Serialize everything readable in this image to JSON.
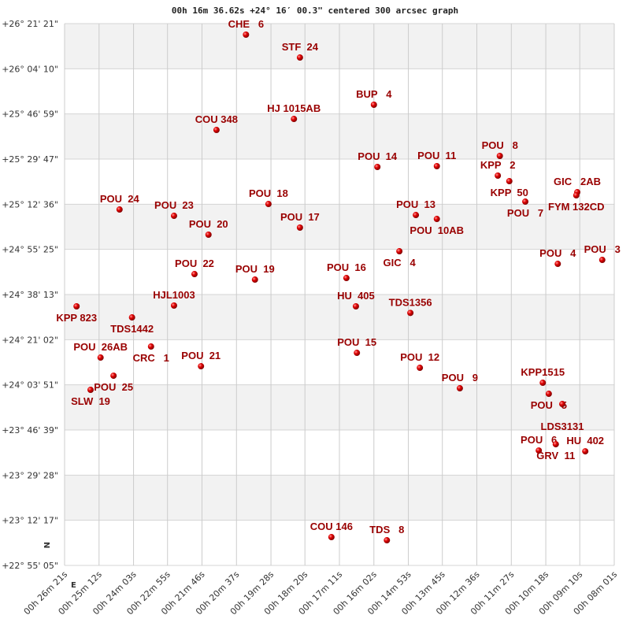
{
  "chart_data": {
    "type": "scatter",
    "title": "00h 16m 36.62s +24° 16′ 00.3\" centered 300 arcsec graph",
    "xlabel": "",
    "ylabel": "",
    "xlim": [
      "00h 26m 21s",
      "00h 08m 01s"
    ],
    "ylim": [
      "+22° 55' 05\"",
      "+26° 21' 21\""
    ],
    "x_axis_reversed": true,
    "grid": true,
    "band_colors": [
      "#f2f2f2",
      "#ffffff"
    ],
    "point_color": "#dd0000",
    "label_color": "#990000",
    "compass": {
      "north": "N",
      "east": "E"
    },
    "x_ticks": [
      "00h 26m 21s",
      "00h 25m 12s",
      "00h 24m 03s",
      "00h 22m 55s",
      "00h 21m 46s",
      "00h 20m 37s",
      "00h 19m 28s",
      "00h 18m 20s",
      "00h 17m 11s",
      "00h 16m 02s",
      "00h 14m 53s",
      "00h 13m 45s",
      "00h 12m 36s",
      "00h 11m 27s",
      "00h 10m 18s",
      "00h 09m 10s",
      "00h 08m 01s"
    ],
    "y_ticks": [
      "+26° 21' 21\"",
      "+26° 04' 10\"",
      "+25° 46' 59\"",
      "+25° 29' 47\"",
      "+25° 12' 36\"",
      "+24° 55' 25\"",
      "+24° 38' 13\"",
      "+24° 21' 02\"",
      "+24° 03' 51\"",
      "+23° 46' 39\"",
      "+23° 29' 28\"",
      "+23° 12' 17\"",
      "+22° 55' 05\""
    ],
    "points": [
      {
        "name": "CHE   6",
        "ra": "00h 20m 18s",
        "dec": "+26° 17' 09\""
      },
      {
        "name": "STF  24",
        "ra": "00h 18m 30s",
        "dec": "+26° 08' 27\""
      },
      {
        "name": "BUP   4",
        "ra": "00h 16m 02s",
        "dec": "+25° 50' 28\""
      },
      {
        "name": "HJ 1015AB",
        "ra": "00h 18m 42s",
        "dec": "+25° 45' 04\""
      },
      {
        "name": "COU 348",
        "ra": "00h 21m 17s",
        "dec": "+25° 40' 52\""
      },
      {
        "name": "POU  14",
        "ra": "00h 15m 55s",
        "dec": "+25° 26' 47\""
      },
      {
        "name": "POU  11",
        "ra": "00h 13m 56s",
        "dec": "+25° 27' 05\""
      },
      {
        "name": "POU   8",
        "ra": "00h 11m 50s",
        "dec": "+25° 30' 59\""
      },
      {
        "name": "KPP   2",
        "ra": "00h 11m 54s",
        "dec": "+25° 23' 29\""
      },
      {
        "name": "KPP  50",
        "ra": "00h 11m 31s",
        "dec": "+25° 21' 23\""
      },
      {
        "name": "POU   7",
        "ra": "00h 10m 59s",
        "dec": "+25° 13' 35\""
      },
      {
        "name": "GIC   2AB",
        "ra": "00h 09m 15s",
        "dec": "+25° 17' 11\""
      },
      {
        "name": "FYM 132CD",
        "ra": "00h 09m 17s",
        "dec": "+25° 15' 59\""
      },
      {
        "name": "POU  13",
        "ra": "00h 14m 38s",
        "dec": "+25° 08' 29\""
      },
      {
        "name": "POU  10AB",
        "ra": "00h 13m 56s",
        "dec": "+25° 06' 59\""
      },
      {
        "name": "GIC   4",
        "ra": "00h 15m 11s",
        "dec": "+24° 54' 42\""
      },
      {
        "name": "POU   4",
        "ra": "00h 09m 54s",
        "dec": "+24° 49' 54\""
      },
      {
        "name": "POU   3",
        "ra": "00h 08m 25s",
        "dec": "+24° 51' 24\""
      },
      {
        "name": "POU  24",
        "ra": "00h 24m 31s",
        "dec": "+25° 10' 35\""
      },
      {
        "name": "POU  23",
        "ra": "00h 22m 42s",
        "dec": "+25° 08' 11\""
      },
      {
        "name": "POU  18",
        "ra": "00h 19m 33s",
        "dec": "+25° 12' 41\""
      },
      {
        "name": "POU  17",
        "ra": "00h 18m 30s",
        "dec": "+25° 03' 42\""
      },
      {
        "name": "POU  20",
        "ra": "00h 21m 33s",
        "dec": "+25° 01' 00\""
      },
      {
        "name": "POU  22",
        "ra": "00h 22m 01s",
        "dec": "+24° 46' 00\""
      },
      {
        "name": "POU  19",
        "ra": "00h 20m 00s",
        "dec": "+24° 43' 54\""
      },
      {
        "name": "POU  16",
        "ra": "00h 16m 57s",
        "dec": "+24° 44' 30\""
      },
      {
        "name": "KPP 823",
        "ra": "00h 25m 57s",
        "dec": "+24° 33' 43\""
      },
      {
        "name": "HJL1003",
        "ra": "00h 22m 42s",
        "dec": "+24° 34' 01\""
      },
      {
        "name": "TDS1442",
        "ra": "00h 24m 06s",
        "dec": "+24° 29' 31\""
      },
      {
        "name": "HU  405",
        "ra": "00h 16m 38s",
        "dec": "+24° 33' 43\""
      },
      {
        "name": "TDS1356",
        "ra": "00h 14m 49s",
        "dec": "+24° 31' 13\""
      },
      {
        "name": "CRC   1",
        "ra": "00h 23m 28s",
        "dec": "+24° 18' 25\""
      },
      {
        "name": "POU  26AB",
        "ra": "00h 25m 09s",
        "dec": "+24° 14' 13\""
      },
      {
        "name": "POU  25",
        "ra": "00h 24m 43s",
        "dec": "+24° 07' 19\""
      },
      {
        "name": "SLW  19",
        "ra": "00h 25m 29s",
        "dec": "+24° 01' 56\""
      },
      {
        "name": "POU  21",
        "ra": "00h 21m 48s",
        "dec": "+24° 10' 55\""
      },
      {
        "name": "POU  15",
        "ra": "00h 16m 36s",
        "dec": "+24° 16' 01\""
      },
      {
        "name": "POU  12",
        "ra": "00h 14m 30s",
        "dec": "+24° 10' 19\""
      },
      {
        "name": "POU   9",
        "ra": "00h 13m 10s",
        "dec": "+24° 02' 32\""
      },
      {
        "name": "KPP1515",
        "ra": "00h 10m 24s",
        "dec": "+24° 04' 38\""
      },
      {
        "name": "POU   5",
        "ra": "00h 10m 12s",
        "dec": "+24° 00' 26\""
      },
      {
        "name": "LDS3131",
        "ra": "00h 09m 45s",
        "dec": "+23° 56' 32\""
      },
      {
        "name": "POU   6",
        "ra": "00h 10m 32s",
        "dec": "+23° 38' 50\""
      },
      {
        "name": "GRV  11",
        "ra": "00h 09m 58s",
        "dec": "+23° 41' 14\""
      },
      {
        "name": "HU  402",
        "ra": "00h 08m 59s",
        "dec": "+23° 38' 32\""
      },
      {
        "name": "COU 146",
        "ra": "00h 17m 27s",
        "dec": "+23° 05' 52\""
      },
      {
        "name": "TDS   8",
        "ra": "00h 15m 36s",
        "dec": "+23° 04' 40\""
      }
    ]
  }
}
